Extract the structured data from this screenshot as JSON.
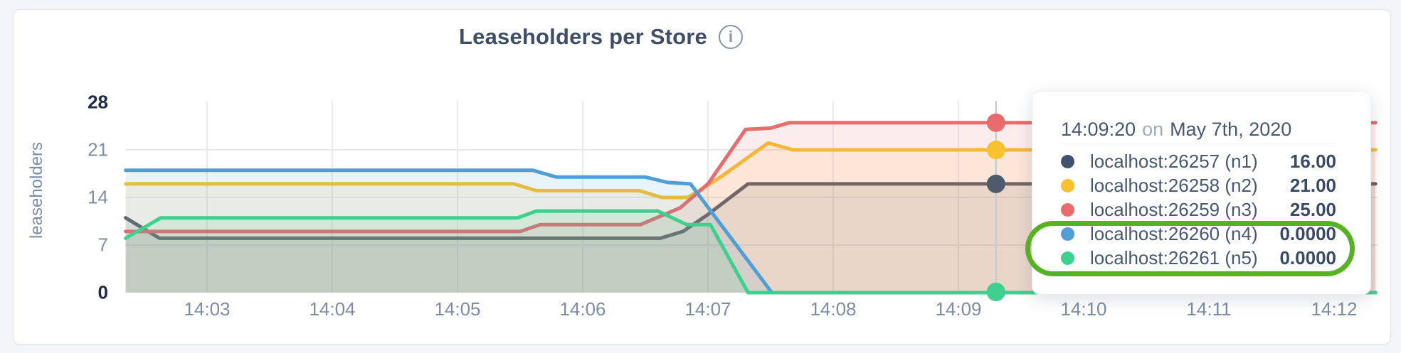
{
  "header": {
    "title": "Leaseholders per Store",
    "info_glyph": "i"
  },
  "y_axis": {
    "label": "leaseholders",
    "ticks": [
      {
        "label": "28",
        "value": 28,
        "bold": true
      },
      {
        "label": "21",
        "value": 21,
        "bold": false
      },
      {
        "label": "14",
        "value": 14,
        "bold": false
      },
      {
        "label": "7",
        "value": 7,
        "bold": false
      },
      {
        "label": "0",
        "value": 0,
        "bold": true
      }
    ]
  },
  "x_axis": {
    "ticks": [
      {
        "label": "14:03",
        "minute": 3
      },
      {
        "label": "14:04",
        "minute": 4
      },
      {
        "label": "14:05",
        "minute": 5
      },
      {
        "label": "14:06",
        "minute": 6
      },
      {
        "label": "14:07",
        "minute": 7
      },
      {
        "label": "14:08",
        "minute": 8
      },
      {
        "label": "14:09",
        "minute": 9
      },
      {
        "label": "14:10",
        "minute": 10
      },
      {
        "label": "14:11",
        "minute": 11
      },
      {
        "label": "14:12",
        "minute": 12
      }
    ]
  },
  "chart_data": {
    "type": "area",
    "title": "Leaseholders per Store",
    "ylabel": "leaseholders",
    "ylim": [
      0,
      28
    ],
    "x_window": [
      "14:02:20",
      "14:12:20"
    ],
    "grid": true,
    "fill_opacity": 0.12,
    "colors": {
      "grid": "#e7eaef",
      "hover_line": "#c9cdd5"
    },
    "hover": {
      "time": "14:09:20",
      "x_minute": 9.3
    },
    "series": [
      {
        "name": "localhost:26257 (n1)",
        "color": "#4e5b6e",
        "hover_value": 16,
        "points": [
          [
            2.35,
            11
          ],
          [
            2.62,
            8
          ],
          [
            6.62,
            8
          ],
          [
            6.8,
            9
          ],
          [
            7.0,
            11.5
          ],
          [
            7.32,
            16
          ],
          [
            12.33,
            16
          ]
        ]
      },
      {
        "name": "localhost:26258 (n2)",
        "color": "#fac12e",
        "hover_value": 21,
        "points": [
          [
            2.35,
            16
          ],
          [
            5.45,
            16
          ],
          [
            5.63,
            15
          ],
          [
            6.45,
            15
          ],
          [
            6.63,
            14
          ],
          [
            6.84,
            14
          ],
          [
            7.1,
            17
          ],
          [
            7.48,
            22
          ],
          [
            7.68,
            21
          ],
          [
            12.33,
            21
          ]
        ]
      },
      {
        "name": "localhost:26259 (n3)",
        "color": "#e96b6b",
        "hover_value": 25,
        "points": [
          [
            2.35,
            9
          ],
          [
            5.5,
            9
          ],
          [
            5.66,
            10
          ],
          [
            6.46,
            10
          ],
          [
            6.78,
            12.5
          ],
          [
            7.0,
            16
          ],
          [
            7.3,
            24
          ],
          [
            7.5,
            24.2
          ],
          [
            7.65,
            25
          ],
          [
            12.33,
            25
          ]
        ]
      },
      {
        "name": "localhost:26260 (n4)",
        "color": "#4d9fd5",
        "hover_value": 0,
        "points": [
          [
            2.35,
            18
          ],
          [
            5.6,
            18
          ],
          [
            5.79,
            17
          ],
          [
            6.5,
            17
          ],
          [
            6.68,
            16.2
          ],
          [
            6.86,
            16
          ],
          [
            7.51,
            0
          ],
          [
            12.33,
            0
          ]
        ]
      },
      {
        "name": "localhost:26261 (n5)",
        "color": "#3ed08e",
        "hover_value": 0,
        "points": [
          [
            2.35,
            8
          ],
          [
            2.63,
            11
          ],
          [
            5.48,
            11
          ],
          [
            5.63,
            12
          ],
          [
            6.6,
            12
          ],
          [
            6.83,
            10
          ],
          [
            7.02,
            10
          ],
          [
            7.32,
            0
          ],
          [
            12.33,
            0
          ]
        ]
      }
    ]
  },
  "tooltip": {
    "time": "14:09:20",
    "on_word": "on",
    "date": "May 7th, 2020",
    "rows": [
      {
        "label": "localhost:26257 (n1)",
        "value": "16.00",
        "color": "#42526e",
        "highlight": false
      },
      {
        "label": "localhost:26258 (n2)",
        "value": "21.00",
        "color": "#fac12e",
        "highlight": false
      },
      {
        "label": "localhost:26259 (n3)",
        "value": "25.00",
        "color": "#e96b6b",
        "highlight": false
      },
      {
        "label": "localhost:26260 (n4)",
        "value": "0.0000",
        "color": "#4d9fd5",
        "highlight": true
      },
      {
        "label": "localhost:26261 (n5)",
        "value": "0.0000",
        "color": "#3ed08e",
        "highlight": true
      }
    ]
  },
  "annotation": {
    "shape": "rounded-oval",
    "color": "#55b321",
    "wraps_rows": [
      "localhost:26260 (n4)",
      "localhost:26261 (n5)"
    ]
  }
}
